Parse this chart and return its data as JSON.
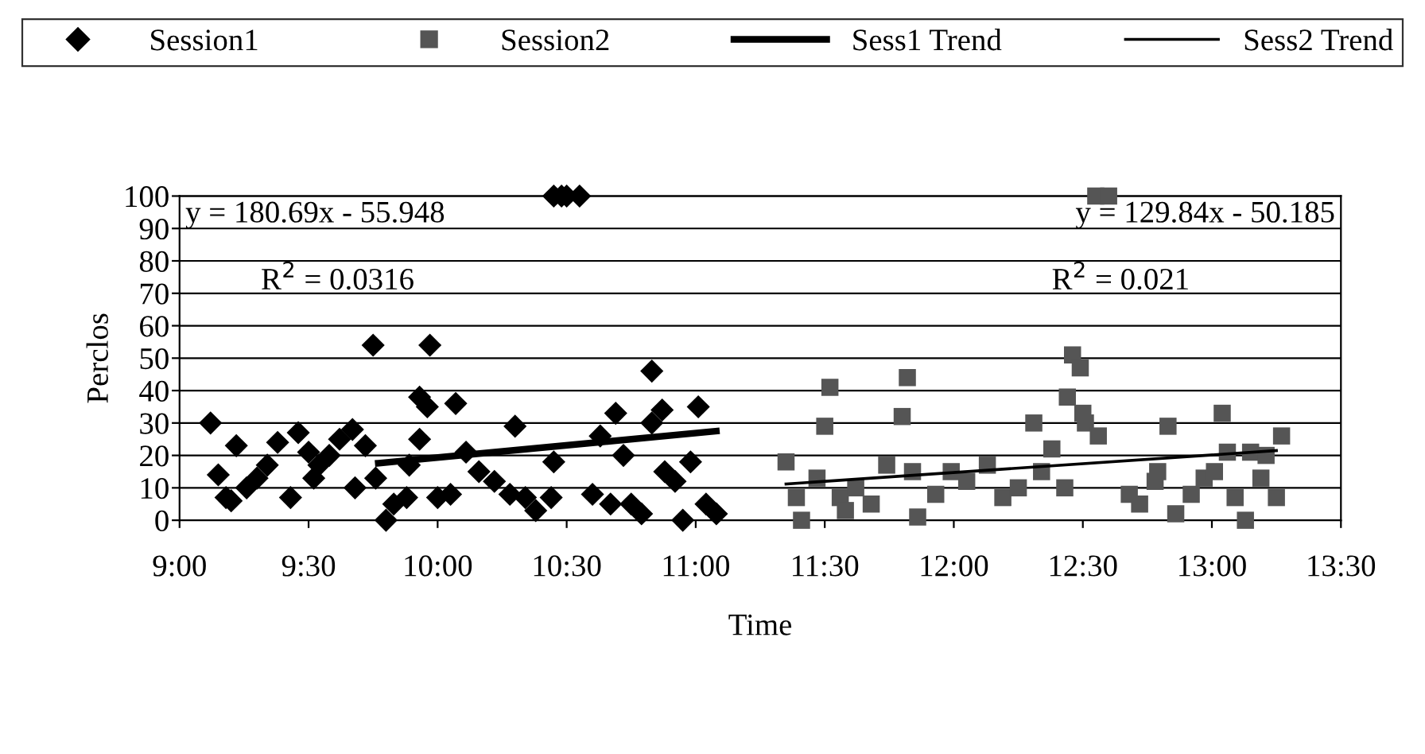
{
  "chart_data": {
    "type": "scatter",
    "xlabel": "Time",
    "ylabel": "Perclos",
    "xlim": [
      9,
      13.5
    ],
    "ylim": [
      0,
      100
    ],
    "xticks": [
      {
        "value": 9,
        "label": "9:00"
      },
      {
        "value": 9.5,
        "label": "9:30"
      },
      {
        "value": 10,
        "label": "10:00"
      },
      {
        "value": 10.5,
        "label": "10:30"
      },
      {
        "value": 11,
        "label": "11:00"
      },
      {
        "value": 11.5,
        "label": "11:30"
      },
      {
        "value": 12,
        "label": "12:00"
      },
      {
        "value": 12.5,
        "label": "12:30"
      },
      {
        "value": 13,
        "label": "13:00"
      },
      {
        "value": 13.5,
        "label": "13:30"
      }
    ],
    "yticks": [
      0,
      10,
      20,
      30,
      40,
      50,
      60,
      70,
      80,
      90,
      100
    ],
    "grid": "y",
    "legend": "top",
    "annotations": [
      "y = 180.69x - 55.948",
      "R$^{2}$ = 0.0316",
      "y = 129.84x - 50.185",
      "R$^{2}$ = 0.021"
    ],
    "series": [
      {
        "name": "Session1",
        "marker": "diamond",
        "color": "#000000",
        "x": [
          9.12,
          9.15,
          9.18,
          9.22,
          9.2,
          9.26,
          9.3,
          9.34,
          9.38,
          9.46,
          9.43,
          9.5,
          9.54,
          9.58,
          9.52,
          9.62,
          9.67,
          9.68,
          9.72,
          9.75,
          9.76,
          9.8,
          9.83,
          9.88,
          9.89,
          9.93,
          9.93,
          9.96,
          9.97,
          10.0,
          10.05,
          10.07,
          10.11,
          10.16,
          10.22,
          10.28,
          10.3,
          10.34,
          10.38,
          10.44,
          10.45,
          10.48,
          10.45,
          10.5,
          10.55,
          10.6,
          10.63,
          10.67,
          10.69,
          10.72,
          10.75,
          10.79,
          10.83,
          10.83,
          10.87,
          10.88,
          10.92,
          10.95,
          10.98,
          11.01,
          11.04,
          11.08
        ],
        "values": [
          30,
          14,
          7,
          23,
          6,
          10,
          13,
          17,
          24,
          27,
          7,
          21,
          17,
          20,
          13,
          25,
          28,
          10,
          23,
          54,
          13,
          0,
          5,
          7,
          17,
          25,
          38,
          35,
          54,
          7,
          8,
          36,
          21,
          15,
          12,
          8,
          29,
          7,
          3,
          7,
          100,
          100,
          18,
          100,
          100,
          8,
          26,
          5,
          33,
          20,
          5,
          2,
          46,
          30,
          34,
          15,
          12,
          0,
          18,
          35,
          5,
          2
        ]
      },
      {
        "name": "Session2",
        "marker": "square",
        "color": "#555555",
        "x": [
          11.35,
          11.39,
          11.41,
          11.47,
          11.5,
          11.52,
          11.56,
          11.58,
          11.62,
          11.68,
          11.74,
          11.8,
          11.82,
          11.84,
          11.86,
          11.93,
          11.99,
          12.05,
          12.13,
          12.19,
          12.25,
          12.31,
          12.34,
          12.38,
          12.43,
          12.44,
          12.46,
          12.49,
          12.5,
          12.51,
          12.56,
          12.55,
          12.6,
          12.68,
          12.72,
          12.78,
          12.79,
          12.83,
          12.86,
          12.92,
          12.97,
          13.01,
          13.04,
          13.06,
          13.09,
          13.13,
          13.15,
          13.19,
          13.21,
          13.25,
          13.27
        ],
        "values": [
          18,
          7,
          0,
          13,
          29,
          41,
          7,
          3,
          10,
          5,
          17,
          32,
          44,
          15,
          1,
          8,
          15,
          12,
          17,
          7,
          10,
          30,
          15,
          22,
          10,
          38,
          51,
          47,
          33,
          30,
          26,
          100,
          100,
          8,
          5,
          12,
          15,
          29,
          2,
          8,
          13,
          15,
          33,
          21,
          7,
          0,
          21,
          13,
          20,
          7,
          26
        ]
      },
      {
        "name": "Sess1 Trend",
        "type": "line",
        "line_style": "solid",
        "color": "#000000",
        "x": [
          9.77,
          11.08
        ],
        "values": [
          17.6,
          27.5
        ]
      },
      {
        "name": "Sess2 Trend",
        "type": "line",
        "line_style": "solid",
        "color": "#000000",
        "x": [
          11.35,
          13.25
        ],
        "values": [
          11.2,
          21.5
        ]
      }
    ]
  }
}
